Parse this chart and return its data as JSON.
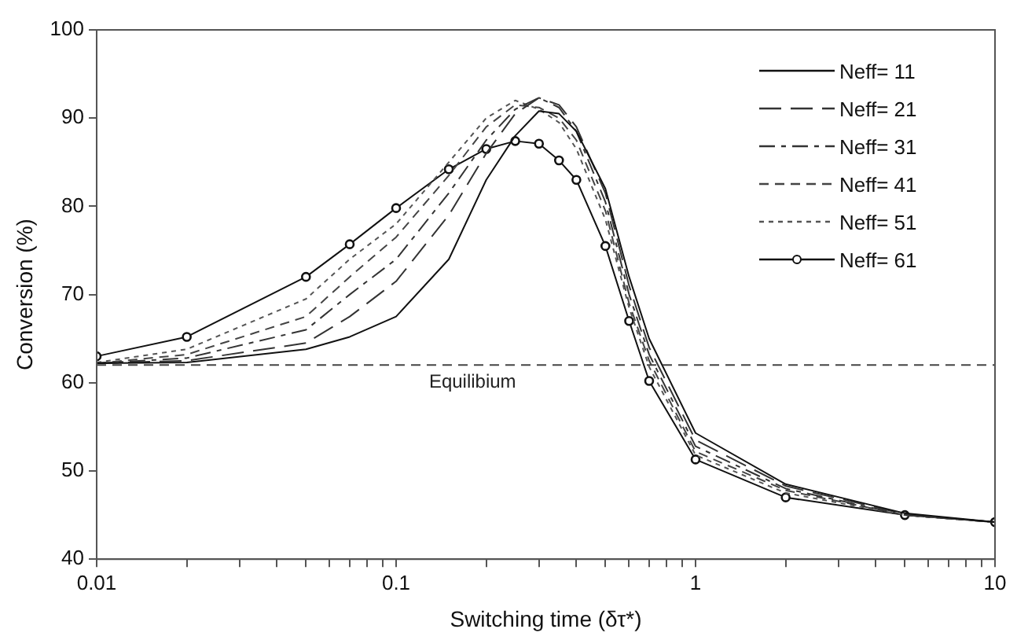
{
  "chart_data": {
    "type": "line",
    "xlabel": "Switching time (δτ*)",
    "ylabel": "Conversion (%)",
    "log": "x",
    "xlim": [
      0.01,
      10
    ],
    "xticks": [
      0.01,
      {
        "value": 0.02,
        "label": null
      },
      {
        "value": 0.03,
        "label": null
      },
      {
        "value": 0.04,
        "label": null
      },
      {
        "value": 0.05,
        "label": null
      },
      {
        "value": 0.06,
        "label": null
      },
      {
        "value": 0.07,
        "label": null
      },
      {
        "value": 0.08,
        "label": null
      },
      {
        "value": 0.09,
        "label": null
      },
      0.1,
      {
        "value": 0.2,
        "label": null
      },
      {
        "value": 0.3,
        "label": null
      },
      {
        "value": 0.4,
        "label": null
      },
      {
        "value": 0.5,
        "label": null
      },
      {
        "value": 0.6,
        "label": null
      },
      {
        "value": 0.7,
        "label": null
      },
      {
        "value": 0.8,
        "label": null
      },
      {
        "value": 0.9,
        "label": null
      },
      1,
      {
        "value": 2,
        "label": null
      },
      {
        "value": 3,
        "label": null
      },
      {
        "value": 4,
        "label": null
      },
      {
        "value": 5,
        "label": null
      },
      {
        "value": 6,
        "label": null
      },
      {
        "value": 7,
        "label": null
      },
      {
        "value": 8,
        "label": null
      },
      {
        "value": 9,
        "label": null
      },
      10
    ],
    "ylim": [
      40,
      100
    ],
    "yticks": [
      40,
      50,
      60,
      70,
      80,
      90,
      100
    ],
    "grid": false,
    "legend": "top right",
    "x": [
      0.01,
      0.02,
      0.05,
      0.07,
      0.1,
      0.15,
      0.2,
      0.25,
      0.3,
      0.35,
      0.4,
      0.5,
      0.6,
      0.7,
      1,
      2,
      5,
      10
    ],
    "series": [
      {
        "name": "Neff= 11",
        "color": "#111111",
        "line_style": "solid",
        "marker": "none",
        "values": [
          62.2,
          62.3,
          63.8,
          65.2,
          67.5,
          74,
          83,
          88,
          90.8,
          90.5,
          88.5,
          82,
          72,
          65,
          54.3,
          48.5,
          45.2,
          44.2
        ]
      },
      {
        "name": "Neff= 21",
        "color": "#333333",
        "line_style": "longdash",
        "marker": "none",
        "values": [
          62.2,
          62.5,
          64.5,
          67.5,
          71.5,
          79,
          86,
          90.5,
          92.3,
          91.5,
          89,
          81.5,
          71,
          64,
          53.5,
          48.3,
          45.1,
          44.2
        ]
      },
      {
        "name": "Neff= 31",
        "color": "#333333",
        "line_style": "dashdot",
        "marker": "none",
        "values": [
          62.2,
          62.8,
          66,
          70,
          74,
          81.5,
          87.5,
          91,
          92.3,
          91.2,
          88.5,
          80.5,
          70,
          63.2,
          52.8,
          48,
          45,
          44.2
        ]
      },
      {
        "name": "Neff= 41",
        "color": "#444444",
        "line_style": "dashed",
        "marker": "none",
        "values": [
          62.2,
          63.2,
          67.5,
          72,
          76.5,
          83.5,
          89,
          91.5,
          91.2,
          90,
          87.5,
          79.5,
          69,
          62.5,
          52.2,
          47.8,
          45,
          44.2
        ]
      },
      {
        "name": "Neff= 51",
        "color": "#555555",
        "line_style": "dotted",
        "marker": "none",
        "values": [
          62.3,
          63.8,
          69.5,
          74,
          78,
          85,
          90,
          92,
          91,
          89.5,
          86.5,
          78.5,
          68.5,
          61.8,
          51.8,
          47.5,
          45,
          44.2
        ]
      },
      {
        "name": "Neff= 61",
        "color": "#111111",
        "line_style": "solid",
        "marker": "circle",
        "values": [
          63,
          65.2,
          72,
          75.7,
          79.8,
          84.2,
          86.5,
          87.4,
          87.1,
          85.2,
          83,
          75.5,
          67,
          60.2,
          51.3,
          47,
          45,
          44.2
        ]
      }
    ],
    "ref_lines": [
      {
        "axis": "y",
        "value": 62,
        "label": "Equilibium",
        "color": "#444444",
        "line_style": "dashed"
      }
    ]
  }
}
